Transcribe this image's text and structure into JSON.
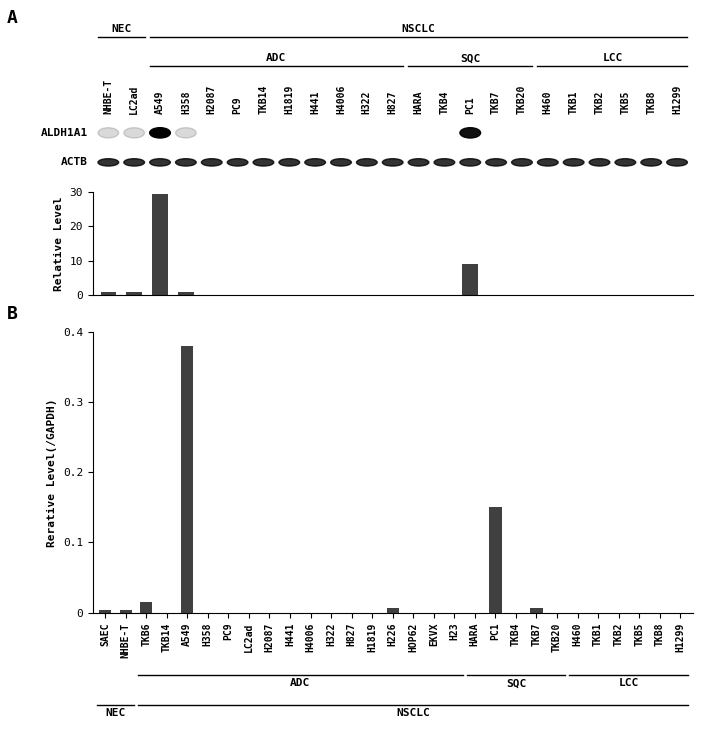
{
  "chart_data": [
    {
      "type": "bar",
      "panel_label": "A",
      "ylabel": "Relative Level",
      "categories": [
        "NHBE-T",
        "LC2ad",
        "A549",
        "H358",
        "H2087",
        "PC9",
        "TKB14",
        "H1819",
        "H441",
        "H4006",
        "H322",
        "H827",
        "HARA",
        "TKB4",
        "PC1",
        "TKB7",
        "TKB20",
        "H460",
        "TKB1",
        "TKB2",
        "TKB5",
        "TKB8",
        "H1299"
      ],
      "values": [
        1.0,
        1.0,
        29.5,
        0.8,
        0,
        0,
        0,
        0,
        0,
        0,
        0,
        0,
        0,
        0,
        9.2,
        0,
        0,
        0,
        0,
        0,
        0,
        0,
        0
      ],
      "color": "#404040",
      "ylim": [
        0,
        30
      ],
      "yticks": [
        0,
        10,
        20,
        30
      ],
      "tick_labels": "y",
      "blot_labels": [
        "ALDH1A1",
        "ACTB"
      ],
      "groups": [
        {
          "label": "NEC",
          "start": 0,
          "end": 1,
          "level": 1
        },
        {
          "label": "NSCLC",
          "start": 2,
          "end": 22,
          "level": 1
        },
        {
          "label": "ADC",
          "start": 2,
          "end": 11,
          "level": 0
        },
        {
          "label": "SQC",
          "start": 12,
          "end": 16,
          "level": 0
        },
        {
          "label": "LCC",
          "start": 17,
          "end": 22,
          "level": 0
        }
      ]
    },
    {
      "type": "bar",
      "panel_label": "B",
      "ylabel": "Rerative Level(/GAPDH)",
      "categories": [
        "SAEC",
        "NHBE-T",
        "TKB6",
        "TKB14",
        "A549",
        "H358",
        "PC9",
        "LC2ad",
        "H2087",
        "H441",
        "H4006",
        "H322",
        "H827",
        "H1819",
        "H226",
        "HOP62",
        "EKVX",
        "H23",
        "HARA",
        "PC1",
        "TKB4",
        "TKB7",
        "TKB20",
        "H460",
        "TKB1",
        "TKB2",
        "TKB5",
        "TKB8",
        "H1299"
      ],
      "values": [
        0.003,
        0.003,
        0.015,
        0,
        0.38,
        0,
        0,
        0,
        0,
        0,
        0,
        0,
        0,
        0,
        0.006,
        0,
        0,
        0,
        0,
        0.15,
        0,
        0.007,
        0,
        0,
        0,
        0,
        0,
        0,
        0
      ],
      "color": "#404040",
      "ylim": [
        0,
        0.4
      ],
      "yticks": [
        0,
        0.1,
        0.2,
        0.3,
        0.4
      ],
      "groups": [
        {
          "label": "NEC",
          "start": 0,
          "end": 1,
          "level": 1
        },
        {
          "label": "NSCLC",
          "start": 2,
          "end": 28,
          "level": 1
        },
        {
          "label": "ADC",
          "start": 2,
          "end": 17,
          "level": 0
        },
        {
          "label": "SQC",
          "start": 18,
          "end": 22,
          "level": 0
        },
        {
          "label": "LCC",
          "start": 23,
          "end": 28,
          "level": 0
        }
      ]
    }
  ]
}
